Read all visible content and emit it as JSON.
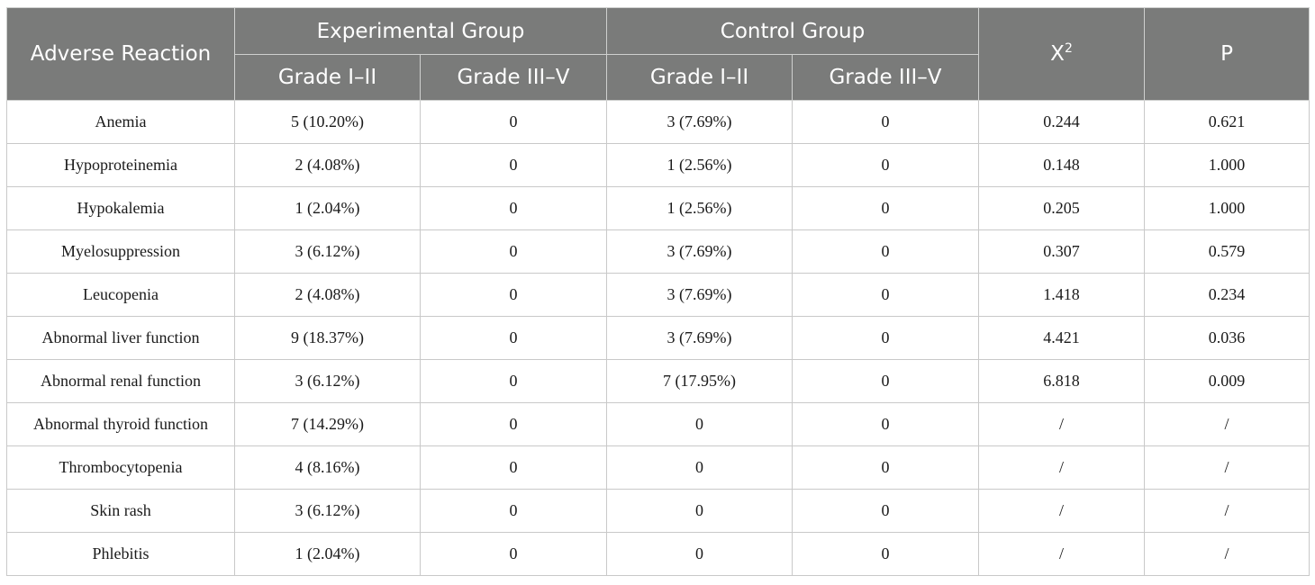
{
  "table": {
    "headers": {
      "adverse_reaction": "Adverse Reaction",
      "experimental_group": "Experimental Group",
      "control_group": "Control Group",
      "chi_square_base": "X",
      "chi_square_sup": "2",
      "p": "P",
      "grade_low": "Grade I–II",
      "grade_high": "Grade III–V"
    },
    "rows": [
      {
        "reaction": "Anemia",
        "exp_low": "5 (10.20%)",
        "exp_high": "0",
        "ctrl_low": "3 (7.69%)",
        "ctrl_high": "0",
        "chi2": "0.244",
        "p": "0.621"
      },
      {
        "reaction": "Hypoproteinemia",
        "exp_low": "2 (4.08%)",
        "exp_high": "0",
        "ctrl_low": "1 (2.56%)",
        "ctrl_high": "0",
        "chi2": "0.148",
        "p": "1.000"
      },
      {
        "reaction": "Hypokalemia",
        "exp_low": "1 (2.04%)",
        "exp_high": "0",
        "ctrl_low": "1 (2.56%)",
        "ctrl_high": "0",
        "chi2": "0.205",
        "p": "1.000"
      },
      {
        "reaction": "Myelosuppression",
        "exp_low": "3 (6.12%)",
        "exp_high": "0",
        "ctrl_low": "3 (7.69%)",
        "ctrl_high": "0",
        "chi2": "0.307",
        "p": "0.579"
      },
      {
        "reaction": "Leucopenia",
        "exp_low": "2 (4.08%)",
        "exp_high": "0",
        "ctrl_low": "3 (7.69%)",
        "ctrl_high": "0",
        "chi2": "1.418",
        "p": "0.234"
      },
      {
        "reaction": "Abnormal liver function",
        "exp_low": "9 (18.37%)",
        "exp_high": "0",
        "ctrl_low": "3 (7.69%)",
        "ctrl_high": "0",
        "chi2": "4.421",
        "p": "0.036"
      },
      {
        "reaction": "Abnormal renal function",
        "exp_low": "3 (6.12%)",
        "exp_high": "0",
        "ctrl_low": "7 (17.95%)",
        "ctrl_high": "0",
        "chi2": "6.818",
        "p": "0.009"
      },
      {
        "reaction": "Abnormal thyroid function",
        "exp_low": "7 (14.29%)",
        "exp_high": "0",
        "ctrl_low": "0",
        "ctrl_high": "0",
        "chi2": "/",
        "p": "/"
      },
      {
        "reaction": "Thrombocytopenia",
        "exp_low": "4 (8.16%)",
        "exp_high": "0",
        "ctrl_low": "0",
        "ctrl_high": "0",
        "chi2": "/",
        "p": "/"
      },
      {
        "reaction": "Skin rash",
        "exp_low": "3 (6.12%)",
        "exp_high": "0",
        "ctrl_low": "0",
        "ctrl_high": "0",
        "chi2": "/",
        "p": "/"
      },
      {
        "reaction": "Phlebitis",
        "exp_low": "1 (2.04%)",
        "exp_high": "0",
        "ctrl_low": "0",
        "ctrl_high": "0",
        "chi2": "/",
        "p": "/"
      }
    ]
  }
}
